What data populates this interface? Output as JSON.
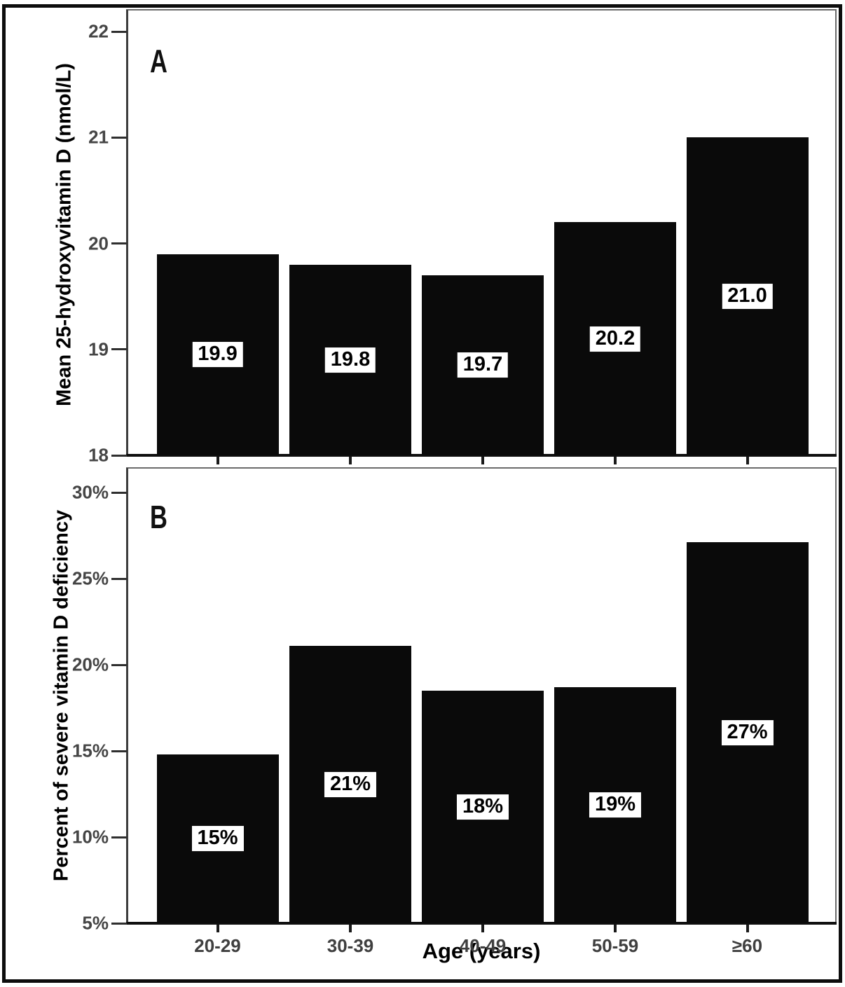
{
  "figure": {
    "xlabel": "Age (years)",
    "background": "#ffffff",
    "outer_border_color": "#0d0d0d"
  },
  "colors": {
    "bar": "#0a0a0a",
    "plot_frame": "#6b6b6b",
    "axis_line": "#0f0f0f",
    "tick_text": "#454545",
    "value_box_bg": "#ffffff",
    "value_box_text": "#000000"
  },
  "chart_data": [
    {
      "type": "bar",
      "panel_letter": "A",
      "title": "",
      "ylabel": "Mean 25-hydroxyvitamin D (nmol/L)",
      "xlabel": "Age (years)",
      "categories": [
        "20-29",
        "30-39",
        "40-49",
        "50-59",
        "≥60"
      ],
      "values": [
        19.9,
        19.8,
        19.7,
        20.2,
        21.0
      ],
      "labels": [
        "19.9",
        "19.8",
        "19.7",
        "20.2",
        "21.0"
      ],
      "ylim": [
        18,
        22
      ],
      "yticks": [
        18,
        19,
        20,
        21,
        22
      ],
      "ytick_labels": [
        "18",
        "19",
        "20",
        "21",
        "22"
      ],
      "grid": false,
      "legend": false,
      "bar_color": "#0a0a0a",
      "show_x_tick_labels": false
    },
    {
      "type": "bar",
      "panel_letter": "B",
      "title": "",
      "ylabel": "Percent of severe vitamin D deficiency",
      "xlabel": "Age (years)",
      "categories": [
        "20-29",
        "30-39",
        "40-49",
        "50-59",
        "≥60"
      ],
      "values": [
        15,
        21,
        18,
        19,
        27
      ],
      "plotted_values": [
        14.8,
        21.1,
        18.5,
        18.7,
        27.1
      ],
      "labels": [
        "15%",
        "21%",
        "18%",
        "19%",
        "27%"
      ],
      "ylim": [
        5,
        30
      ],
      "yticks": [
        5,
        10,
        15,
        20,
        25,
        30
      ],
      "ytick_labels": [
        "5%",
        "10%",
        "15%",
        "20%",
        "25%",
        "30%"
      ],
      "grid": false,
      "legend": false,
      "bar_color": "#0a0a0a",
      "show_x_tick_labels": true
    }
  ]
}
